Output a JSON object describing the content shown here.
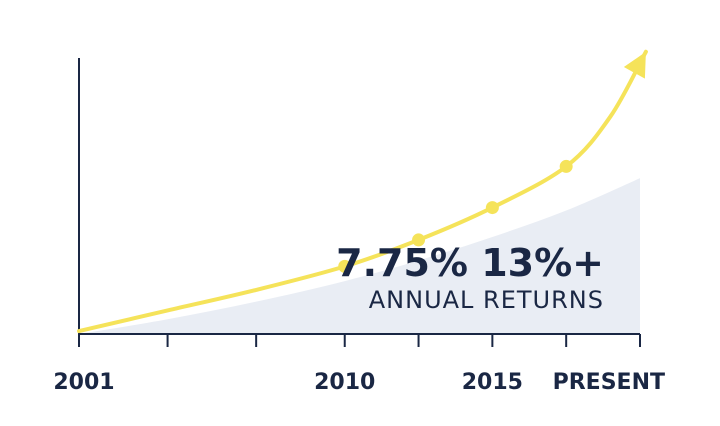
{
  "colors": {
    "line": "#f5e35a",
    "area": "#e9edf4",
    "axis": "#1a2744",
    "text": "#1a2744"
  },
  "annotation": {
    "headline": "7.75% 13%+",
    "subhead": "ANNUAL RETURNS"
  },
  "chart_data": {
    "type": "line",
    "title": "",
    "xlabel": "",
    "ylabel": "",
    "x_tick_labels": [
      {
        "x": 2001,
        "label": "2001"
      },
      {
        "x": 2010,
        "label": "2010"
      },
      {
        "x": 2015,
        "label": "2015"
      },
      {
        "x": 2020,
        "label": "PRESENT"
      }
    ],
    "x_ticks": [
      2001,
      2004,
      2007,
      2010,
      2012.5,
      2015,
      2017.5,
      2020
    ],
    "xlim": [
      2001,
      2020
    ],
    "ylim": [
      0,
      100
    ],
    "grid": false,
    "series": [
      {
        "role": "trend-line",
        "points": [
          {
            "x": 2001,
            "y": 1
          },
          {
            "x": 2004,
            "y": 8
          },
          {
            "x": 2007,
            "y": 15
          },
          {
            "x": 2010,
            "y": 23
          },
          {
            "x": 2012.5,
            "y": 32
          },
          {
            "x": 2015,
            "y": 43
          },
          {
            "x": 2017.5,
            "y": 57
          },
          {
            "x": 2019,
            "y": 74
          },
          {
            "x": 2020.2,
            "y": 96
          }
        ],
        "markers": [
          {
            "x": 2010,
            "y": 23
          },
          {
            "x": 2012.5,
            "y": 32
          },
          {
            "x": 2015,
            "y": 43
          },
          {
            "x": 2017.5,
            "y": 57
          }
        ]
      },
      {
        "role": "area",
        "points": [
          {
            "x": 2001,
            "y": 0
          },
          {
            "x": 2004,
            "y": 5
          },
          {
            "x": 2007,
            "y": 11
          },
          {
            "x": 2010,
            "y": 18
          },
          {
            "x": 2012.5,
            "y": 25
          },
          {
            "x": 2015,
            "y": 33
          },
          {
            "x": 2017.5,
            "y": 42
          },
          {
            "x": 2020,
            "y": 53
          }
        ]
      }
    ]
  }
}
